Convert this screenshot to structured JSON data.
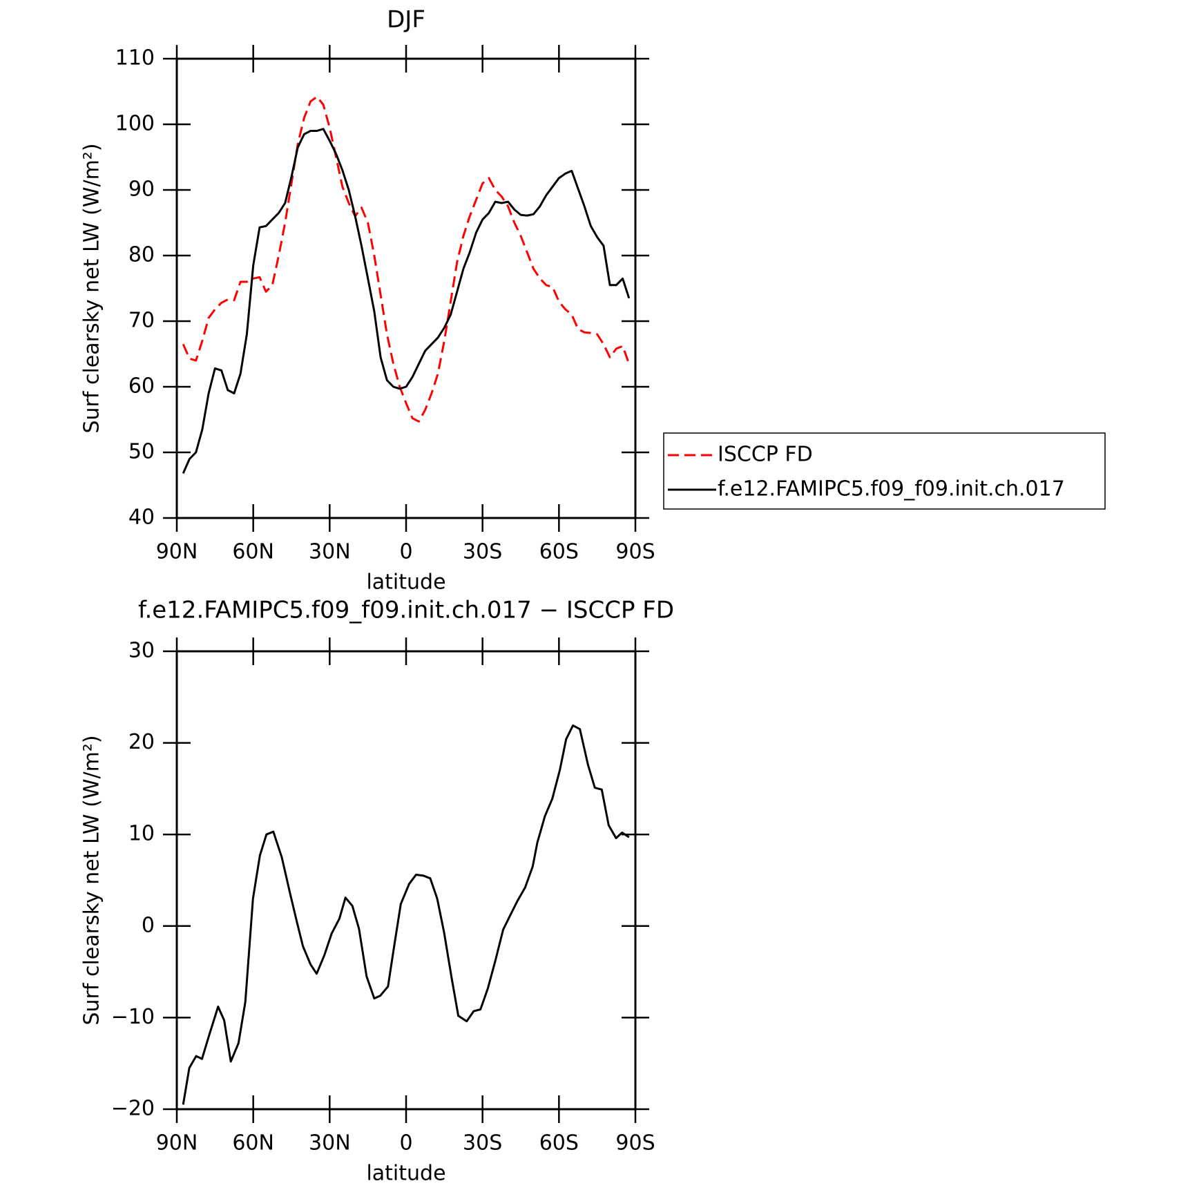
{
  "chart_data": [
    {
      "type": "line",
      "title": "DJF",
      "xlabel": "latitude",
      "ylabel": "Surf clearsky net LW (W/m²)",
      "xlim": [
        90,
        -90
      ],
      "xticks": [
        {
          "value": 90,
          "label": "90N"
        },
        {
          "value": 60,
          "label": "60N"
        },
        {
          "value": 30,
          "label": "30N"
        },
        0,
        {
          "value": -30,
          "label": "30S"
        },
        {
          "value": -60,
          "label": "60S"
        },
        {
          "value": -90,
          "label": "90S"
        }
      ],
      "ylim": [
        40,
        110
      ],
      "yticks": [
        40,
        50,
        60,
        70,
        80,
        90,
        100,
        110
      ],
      "grid": false,
      "legend": "right",
      "x": [
        87.5,
        85,
        82.5,
        80,
        77.5,
        75,
        72.5,
        70,
        67.5,
        65,
        62.5,
        60,
        57.5,
        55,
        52.5,
        50,
        47.5,
        45,
        42.5,
        40,
        37.5,
        35,
        32.5,
        30,
        27.5,
        25,
        22.5,
        20,
        17.5,
        15,
        12.5,
        10,
        7.5,
        5,
        2.5,
        0,
        -2.5,
        -5,
        -7.5,
        -10,
        -12.5,
        -15,
        -17.5,
        -20,
        -22.5,
        -25,
        -27.5,
        -30,
        -32.5,
        -35,
        -37.5,
        -40,
        -42.5,
        -45,
        -47.5,
        -50,
        -52.5,
        -55,
        -57.5,
        -60,
        -62.5,
        -65,
        -67.5,
        -70,
        -72.5,
        -75,
        -77.5,
        -80,
        -82.5,
        -85,
        -87.5
      ],
      "series": [
        {
          "name": "ISCCP FD",
          "color": "#ff0000",
          "linestyle": "dashed",
          "values": [
            66.5,
            64.3,
            64,
            67,
            70.5,
            71.8,
            72.8,
            73.3,
            73.2,
            76,
            76,
            76.5,
            76.7,
            74.5,
            75.5,
            80,
            85,
            91,
            97,
            101,
            103.5,
            104.2,
            103,
            99.5,
            95,
            90.5,
            88,
            86,
            87.3,
            85,
            80,
            74,
            68,
            63.5,
            60,
            57.5,
            55.2,
            54.7,
            56.5,
            59,
            62,
            67,
            73,
            79,
            83,
            86,
            88.5,
            91,
            91.8,
            90,
            89,
            87.5,
            85,
            83,
            80.5,
            78,
            76.5,
            75.5,
            75.2,
            73,
            71.8,
            71,
            68.8,
            68.3,
            68.2,
            68,
            66.5,
            64.5,
            65.8,
            66.2,
            63.5
          ]
        },
        {
          "name": "f.e12.FAMIPC5.f09_f09.init.ch.017",
          "color": "#000000",
          "linestyle": "solid",
          "values": [
            46.8,
            49,
            50,
            53.5,
            59,
            62.8,
            62.5,
            59.5,
            59,
            62,
            68,
            78.5,
            84.3,
            84.5,
            85.5,
            86.5,
            88,
            92,
            96.5,
            98.5,
            99,
            99,
            99.3,
            97.5,
            95.5,
            93,
            90,
            86,
            81.5,
            76.5,
            71.5,
            64.5,
            61,
            60,
            59.7,
            60,
            61.5,
            63.5,
            65.5,
            66.5,
            67.5,
            69,
            71,
            74.5,
            78,
            80.5,
            83.5,
            85.5,
            86.5,
            88.2,
            88,
            88.2,
            87,
            86.2,
            86.1,
            86.3,
            87.5,
            89.2,
            90.5,
            91.8,
            92.5,
            92.9,
            90.2,
            87.5,
            84.5,
            82.8,
            81.5,
            75.5,
            75.5,
            76.5,
            73.5
          ]
        }
      ]
    },
    {
      "type": "line",
      "title": "f.e12.FAMIPC5.f09_f09.init.ch.017 − ISCCP FD",
      "xlabel": "latitude",
      "ylabel": "Surf clearsky net LW (W/m²)",
      "xlim": [
        90,
        -90
      ],
      "xticks": [
        {
          "value": 90,
          "label": "90N"
        },
        {
          "value": 60,
          "label": "60N"
        },
        {
          "value": 30,
          "label": "30N"
        },
        0,
        {
          "value": -30,
          "label": "30S"
        },
        {
          "value": -60,
          "label": "60S"
        },
        {
          "value": -90,
          "label": "90S"
        }
      ],
      "ylim": [
        -20,
        30
      ],
      "yticks": [
        {
          "value": -20,
          "label": "−20"
        },
        {
          "value": -10,
          "label": "−10"
        },
        0,
        10,
        20,
        30
      ],
      "grid": false,
      "x": [
        87.5,
        85.1,
        82.4,
        80.1,
        77.4,
        73.8,
        71.4,
        68.8,
        65.8,
        63.1,
        60.1,
        57.4,
        54.8,
        52.1,
        48.8,
        45.5,
        42.9,
        40.5,
        37.5,
        35.1,
        32.1,
        29.2,
        26.2,
        23.8,
        21.1,
        18.5,
        15.5,
        12.5,
        10.1,
        7.1,
        4.8,
        2.1,
        -1.2,
        -3.9,
        -6.8,
        -9.5,
        -12.2,
        -14.9,
        -17.9,
        -20.5,
        -23.8,
        -26.5,
        -29.2,
        -32.1,
        -35.1,
        -38.1,
        -41.1,
        -43.8,
        -46.7,
        -49.7,
        -51.5,
        -54.5,
        -57.4,
        -60.4,
        -62.8,
        -65.5,
        -68.2,
        -71.4,
        -74.1,
        -76.8,
        -79.5,
        -82.4,
        -84.8,
        -87.5
      ],
      "series": [
        {
          "color": "#000000",
          "linestyle": "solid",
          "values": [
            -19.5,
            -15.5,
            -14.2,
            -14.5,
            -12,
            -8.8,
            -10.3,
            -14.8,
            -12.8,
            -8.3,
            3,
            7.7,
            10,
            10.3,
            7.5,
            3.5,
            0.5,
            -2.2,
            -4.2,
            -5.2,
            -3.2,
            -0.8,
            0.8,
            3.1,
            2.2,
            -0.3,
            -5.5,
            -7.9,
            -7.6,
            -6.6,
            -2.4,
            2.4,
            4.6,
            5.6,
            5.5,
            5.2,
            3,
            -0.7,
            -5.7,
            -9.8,
            -10.4,
            -9.3,
            -9.1,
            -6.8,
            -3.7,
            -0.4,
            1.3,
            2.8,
            4.2,
            6.5,
            9.1,
            12,
            13.9,
            17.1,
            20.4,
            21.9,
            21.5,
            17.6,
            15.1,
            14.9,
            11,
            9.6,
            10.2,
            9.7
          ]
        }
      ]
    }
  ]
}
